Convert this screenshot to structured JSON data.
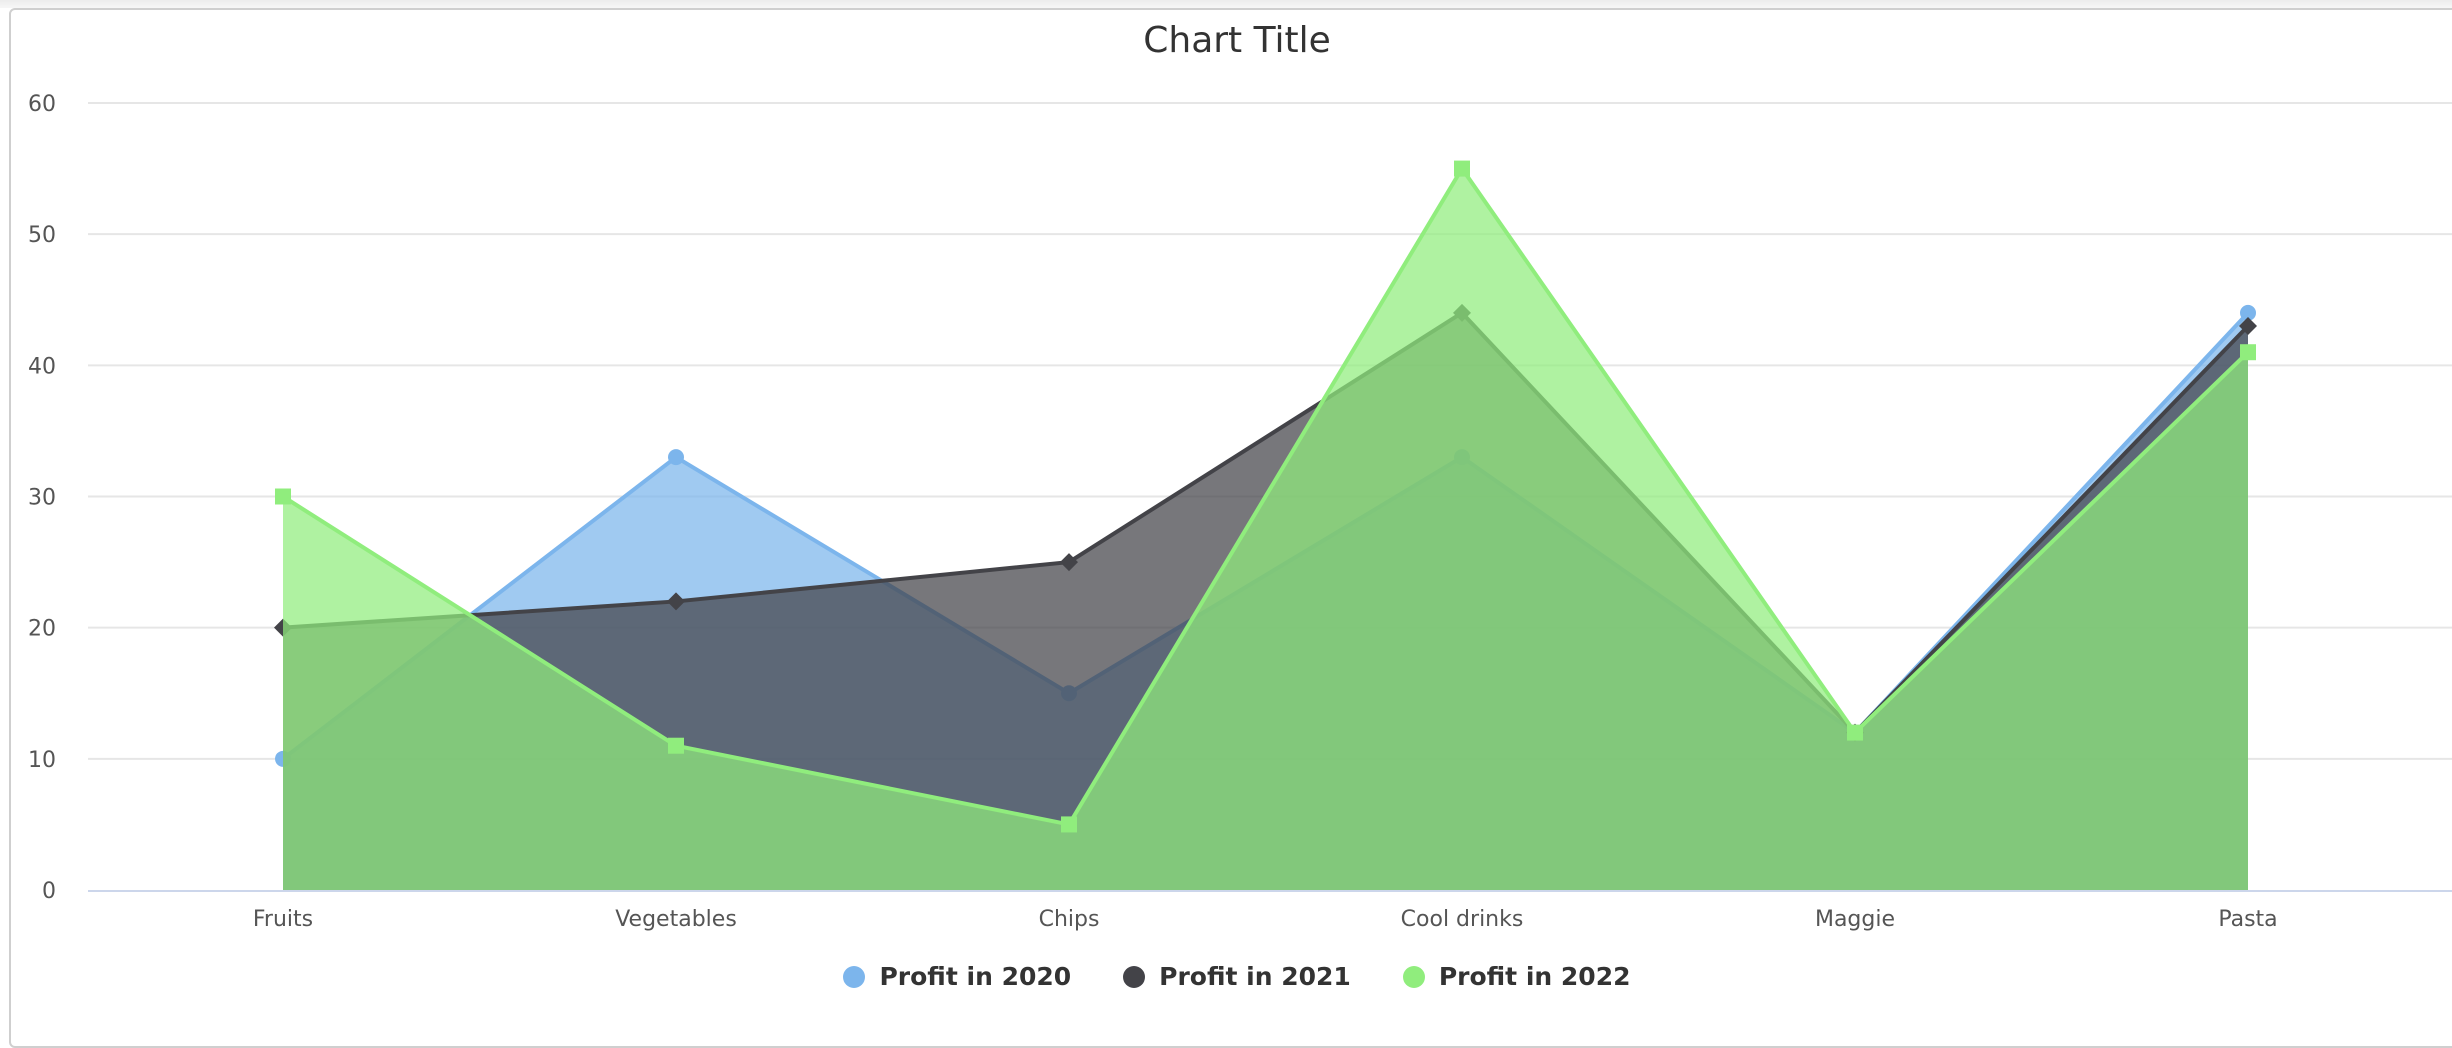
{
  "chart_data": {
    "type": "area",
    "title": "Chart Title",
    "xlabel": "",
    "ylabel": "",
    "ylim": [
      0,
      60
    ],
    "yticks": [
      0,
      10,
      20,
      30,
      40,
      50,
      60
    ],
    "grid": true,
    "legend_position": "bottom",
    "categories": [
      "Fruits",
      "Vegetables",
      "Chips",
      "Cool drinks",
      "Maggie",
      "Pasta"
    ],
    "series": [
      {
        "name": "Profit in 2020",
        "color": "#7CB5EC",
        "marker": "circle",
        "values": [
          10,
          33,
          15,
          33,
          12,
          44
        ]
      },
      {
        "name": "Profit in 2021",
        "color": "#434348",
        "marker": "diamond",
        "values": [
          20,
          22,
          25,
          44,
          12,
          43
        ]
      },
      {
        "name": "Profit in 2022",
        "color": "#90ED7D",
        "marker": "square",
        "values": [
          30,
          11,
          5,
          55,
          12,
          41
        ]
      }
    ]
  },
  "legend": {
    "items": [
      {
        "label": "Profit in 2020",
        "color": "#7CB5EC"
      },
      {
        "label": "Profit in 2021",
        "color": "#434348"
      },
      {
        "label": "Profit in 2022",
        "color": "#90ED7D"
      }
    ]
  }
}
